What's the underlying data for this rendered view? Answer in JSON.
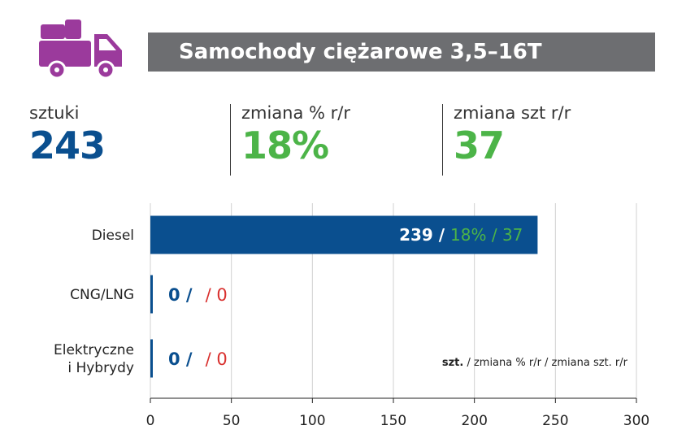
{
  "header": {
    "title": "Samochody ciężarowe 3,5–16T",
    "icon": "delivery-truck-icon",
    "icon_color": "#9b3a9c",
    "bar_color": "#6d6e71"
  },
  "kpis": [
    {
      "label": "sztuki",
      "value": "243",
      "color": "#0a4f8f"
    },
    {
      "label": "zmiana % r/r",
      "value": "18%",
      "color": "#4cb448"
    },
    {
      "label": "zmiana szt r/r",
      "value": "37",
      "color": "#4cb448"
    }
  ],
  "chart_data": {
    "type": "bar",
    "orientation": "horizontal",
    "categories": [
      "Diesel",
      "CNG/LNG",
      "Elektryczne\ni Hybrydy"
    ],
    "series": [
      {
        "name": "szt.",
        "values": [
          239,
          0,
          0
        ],
        "color": "#0a4f8f"
      },
      {
        "name": "zmiana % r/r",
        "values": [
          "18%",
          "",
          ""
        ],
        "color": "#4cb448"
      },
      {
        "name": "zmiana szt. r/r",
        "values": [
          "37",
          "0",
          "0"
        ],
        "color": "#4cb448"
      }
    ],
    "data_labels": [
      {
        "units": "239",
        "pct": "18%",
        "diff": "37",
        "sep": "/"
      },
      {
        "units": "0",
        "pct": "",
        "diff": "0",
        "sep": "/"
      },
      {
        "units": "0",
        "pct": "",
        "diff": "0",
        "sep": "/"
      }
    ],
    "xlim": [
      0,
      300
    ],
    "xticks": [
      0,
      50,
      100,
      150,
      200,
      250,
      300
    ],
    "grid": true,
    "legend": {
      "bold": "szt.",
      "text": " / zmiana % r/r / zmiana szt. r/r",
      "placement": "bottom-right"
    },
    "bar_color": "#0a4f8f",
    "grid_color": "#d0d0d0",
    "zero_color": "#d9312f"
  }
}
